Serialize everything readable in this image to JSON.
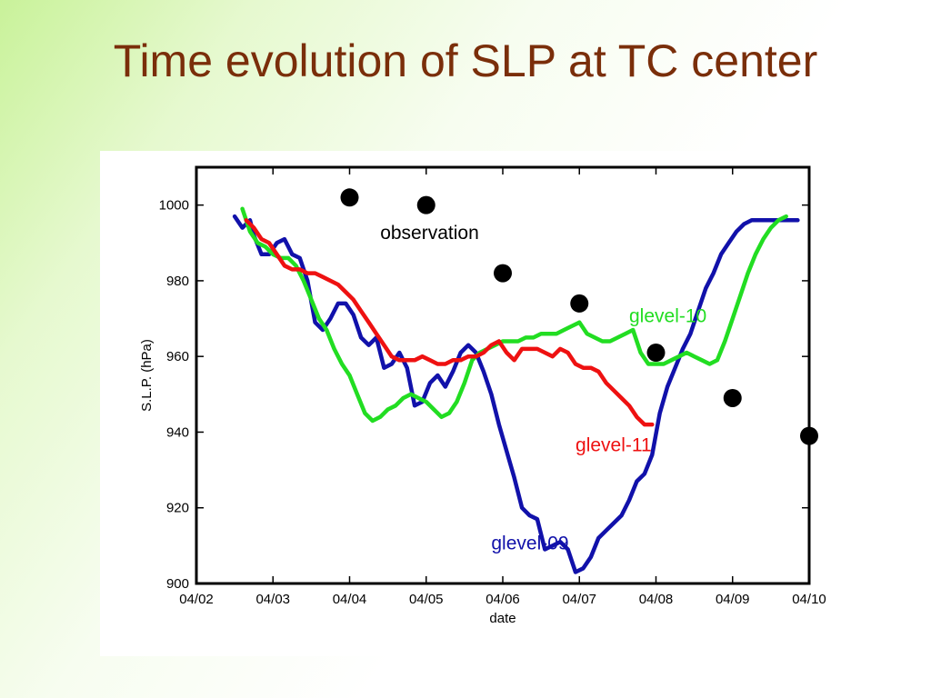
{
  "slide": {
    "title": "Time evolution of SLP at TC center"
  },
  "chart_data": {
    "type": "line",
    "title": "",
    "xlabel": "date",
    "ylabel": "S.L.P. (hPa)",
    "x_tick_labels": [
      "04/02",
      "04/03",
      "04/04",
      "04/05",
      "04/06",
      "04/07",
      "04/08",
      "04/09",
      "04/10"
    ],
    "x_tick_positions": [
      0,
      1,
      2,
      3,
      4,
      5,
      6,
      7,
      8
    ],
    "xlim": [
      0,
      8
    ],
    "y_ticks": [
      900,
      920,
      940,
      960,
      980,
      1000
    ],
    "ylim": [
      900,
      1010
    ],
    "grid": false,
    "x_unit": "days since 04/02 00:00",
    "annotations": [
      {
        "text": "observation",
        "x": 2.4,
        "y": 991,
        "color": "#000000"
      },
      {
        "text": "glevel-10",
        "x": 5.65,
        "y": 969,
        "color": "#22dd22"
      },
      {
        "text": "glevel-11",
        "x": 4.95,
        "y": 935,
        "color": "#ee1111"
      },
      {
        "text": "glevel-09",
        "x": 3.85,
        "y": 909,
        "color": "#1111aa"
      }
    ],
    "series": [
      {
        "name": "glevel-09",
        "color": "#1111aa",
        "style": "line",
        "x": [
          0.5,
          0.6,
          0.7,
          0.75,
          0.85,
          0.95,
          1.05,
          1.15,
          1.25,
          1.35,
          1.45,
          1.55,
          1.65,
          1.75,
          1.85,
          1.95,
          2.05,
          2.15,
          2.25,
          2.35,
          2.45,
          2.55,
          2.65,
          2.75,
          2.85,
          2.95,
          3.05,
          3.15,
          3.25,
          3.35,
          3.45,
          3.55,
          3.65,
          3.75,
          3.85,
          3.95,
          4.05,
          4.15,
          4.25,
          4.35,
          4.45,
          4.55,
          4.65,
          4.75,
          4.85,
          4.95,
          5.05,
          5.15,
          5.25,
          5.35,
          5.45,
          5.55,
          5.65,
          5.75,
          5.85,
          5.95,
          6.05,
          6.15,
          6.25,
          6.35,
          6.45,
          6.55,
          6.65,
          6.75,
          6.85,
          6.95,
          7.05,
          7.15,
          7.25,
          7.35,
          7.45,
          7.55,
          7.65,
          7.75,
          7.85
        ],
        "y": [
          997,
          994,
          996,
          992,
          987,
          987,
          990,
          991,
          987,
          986,
          980,
          969,
          967,
          970,
          974,
          974,
          971,
          965,
          963,
          965,
          957,
          958,
          961,
          957,
          947,
          948,
          953,
          955,
          952,
          956,
          961,
          963,
          961,
          956,
          950,
          942,
          935,
          928,
          920,
          918,
          917,
          909,
          910,
          911,
          909,
          903,
          904,
          907,
          912,
          914,
          916,
          918,
          922,
          927,
          929,
          934,
          945,
          952,
          957,
          962,
          966,
          972,
          978,
          982,
          987,
          990,
          993,
          995,
          996,
          996,
          996,
          996,
          996,
          996,
          996
        ]
      },
      {
        "name": "glevel-10",
        "color": "#22dd22",
        "style": "line",
        "x": [
          0.6,
          0.7,
          0.8,
          0.9,
          1.0,
          1.1,
          1.2,
          1.3,
          1.4,
          1.5,
          1.6,
          1.7,
          1.8,
          1.9,
          2.0,
          2.1,
          2.2,
          2.3,
          2.4,
          2.5,
          2.6,
          2.7,
          2.8,
          2.9,
          3.0,
          3.1,
          3.2,
          3.3,
          3.4,
          3.5,
          3.6,
          3.7,
          3.8,
          3.9,
          4.0,
          4.1,
          4.2,
          4.3,
          4.4,
          4.5,
          4.6,
          4.7,
          4.8,
          4.9,
          5.0,
          5.1,
          5.2,
          5.3,
          5.4,
          5.5,
          5.6,
          5.7,
          5.8,
          5.9,
          6.0,
          6.1,
          6.2,
          6.3,
          6.4,
          6.5,
          6.6,
          6.7,
          6.8,
          6.9,
          7.0,
          7.1,
          7.2,
          7.3,
          7.4,
          7.5,
          7.6,
          7.7
        ],
        "y": [
          999,
          993,
          990,
          989,
          987,
          986,
          986,
          984,
          980,
          975,
          970,
          967,
          962,
          958,
          955,
          950,
          945,
          943,
          944,
          946,
          947,
          949,
          950,
          949,
          948,
          946,
          944,
          945,
          948,
          953,
          959,
          961,
          962,
          963,
          964,
          964,
          964,
          965,
          965,
          966,
          966,
          966,
          967,
          968,
          969,
          966,
          965,
          964,
          964,
          965,
          966,
          967,
          961,
          958,
          958,
          958,
          959,
          960,
          961,
          960,
          959,
          958,
          959,
          964,
          970,
          976,
          982,
          987,
          991,
          994,
          996,
          997
        ]
      },
      {
        "name": "glevel-11",
        "color": "#ee1111",
        "style": "line",
        "x": [
          0.65,
          0.75,
          0.85,
          0.95,
          1.05,
          1.15,
          1.25,
          1.35,
          1.45,
          1.55,
          1.65,
          1.75,
          1.85,
          1.95,
          2.05,
          2.15,
          2.25,
          2.35,
          2.45,
          2.55,
          2.65,
          2.75,
          2.85,
          2.95,
          3.05,
          3.15,
          3.25,
          3.35,
          3.45,
          3.55,
          3.65,
          3.75,
          3.85,
          3.95,
          4.05,
          4.15,
          4.25,
          4.35,
          4.45,
          4.55,
          4.65,
          4.75,
          4.85,
          4.95,
          5.05,
          5.15,
          5.25,
          5.35,
          5.45,
          5.55,
          5.65,
          5.75,
          5.85,
          5.95
        ],
        "y": [
          996,
          994,
          991,
          990,
          987,
          984,
          983,
          983,
          982,
          982,
          981,
          980,
          979,
          977,
          975,
          972,
          969,
          966,
          963,
          960,
          959,
          959,
          959,
          960,
          959,
          958,
          958,
          959,
          959,
          960,
          960,
          961,
          963,
          964,
          961,
          959,
          962,
          962,
          962,
          961,
          960,
          962,
          961,
          958,
          957,
          957,
          956,
          953,
          951,
          949,
          947,
          944,
          942,
          942
        ]
      },
      {
        "name": "observation",
        "color": "#000000",
        "style": "marker",
        "x": [
          2.0,
          3.0,
          4.0,
          5.0,
          6.0,
          7.0,
          8.0
        ],
        "y": [
          1002,
          1000,
          982,
          974,
          961,
          949,
          939
        ]
      }
    ]
  }
}
